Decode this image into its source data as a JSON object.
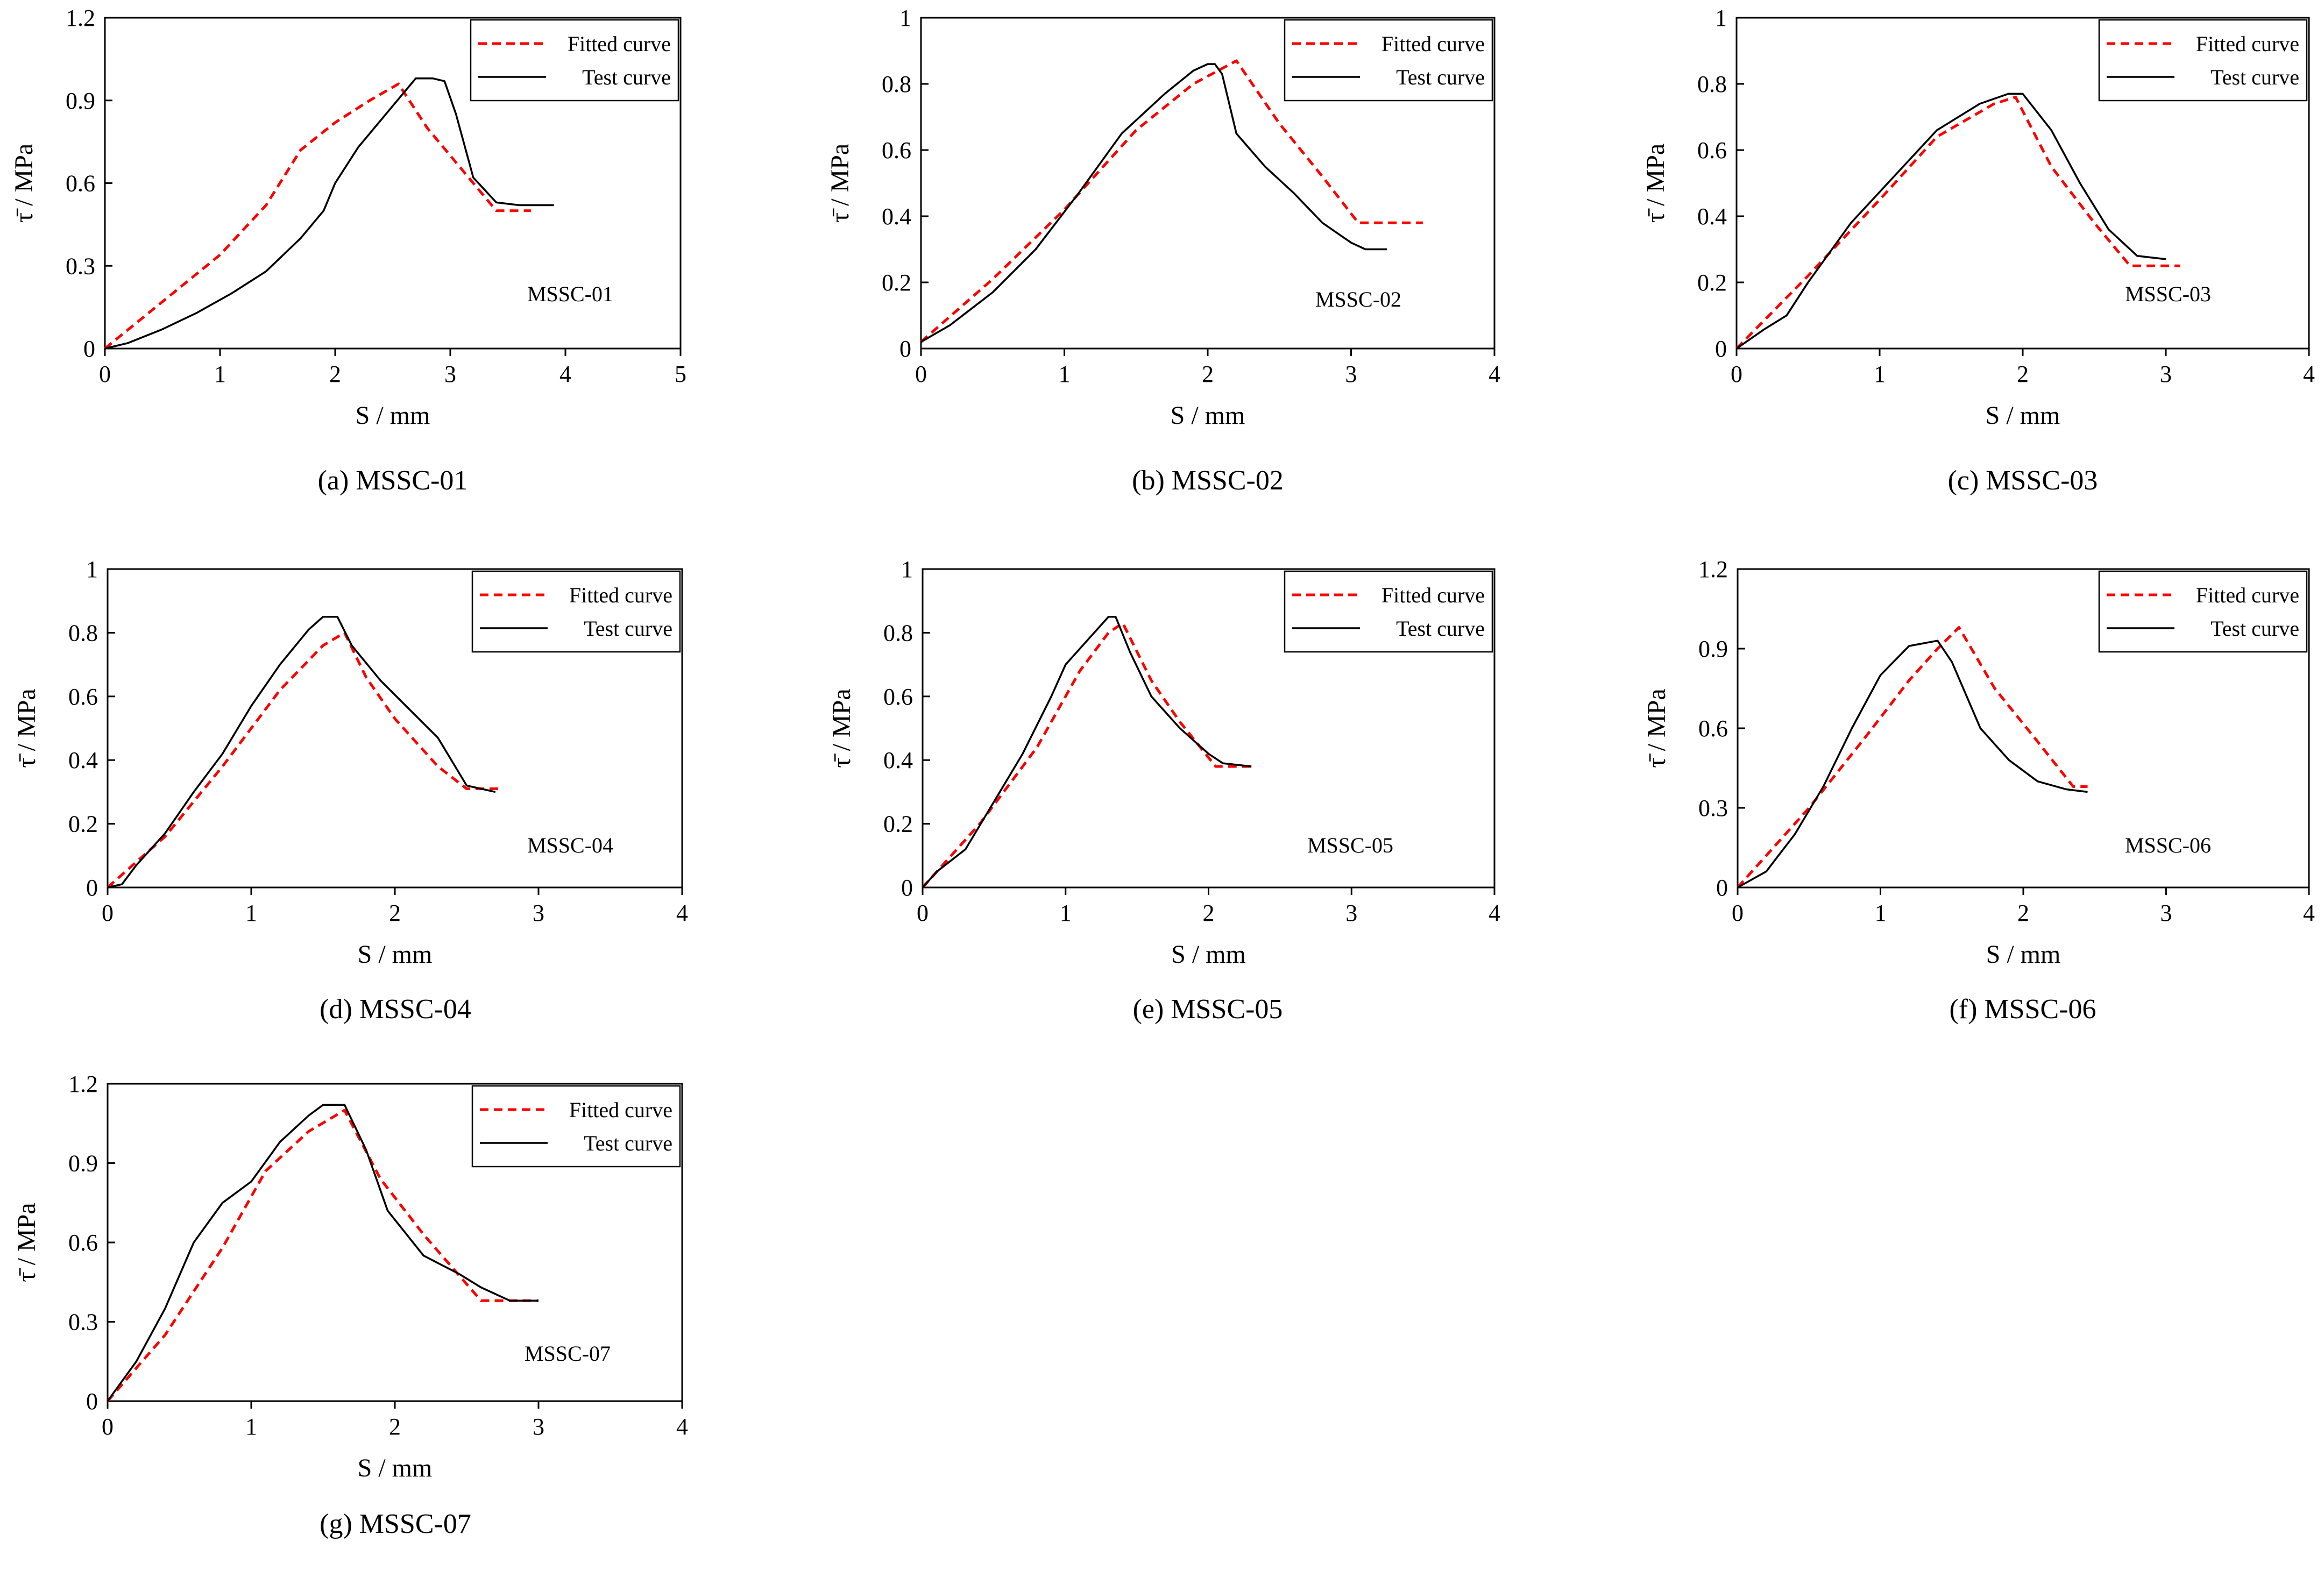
{
  "figure": {
    "legend": {
      "fitted": "Fitted curve",
      "test": "Test curve"
    },
    "colors": {
      "fitted": "#ff0000",
      "test": "#000000",
      "frame": "#000000"
    }
  },
  "chart_data": [
    {
      "type": "line",
      "id": "a",
      "caption": "(a) MSSC-01",
      "label": "MSSC-01",
      "xlabel": "S / mm",
      "ylabel": "τ̄ / MPa",
      "xlim": [
        0,
        5
      ],
      "ylim": [
        0,
        1.2
      ],
      "xticks": [
        "0",
        "1",
        "2",
        "3",
        "4",
        "5"
      ],
      "yticks": [
        "0",
        "0.3",
        "0.6",
        "0.9",
        "1.2"
      ],
      "series": [
        {
          "name": "Fitted curve",
          "style": "dashed",
          "x": [
            0,
            0.5,
            1.0,
            1.4,
            1.7,
            2.0,
            2.3,
            2.55,
            2.8,
            3.1,
            3.4,
            3.7
          ],
          "y": [
            0,
            0.17,
            0.34,
            0.52,
            0.72,
            0.82,
            0.9,
            0.96,
            0.8,
            0.65,
            0.5,
            0.5
          ]
        },
        {
          "name": "Test curve",
          "style": "solid",
          "x": [
            0,
            0.2,
            0.5,
            0.8,
            1.1,
            1.4,
            1.7,
            1.9,
            2.0,
            2.2,
            2.4,
            2.6,
            2.7,
            2.85,
            2.95,
            3.05,
            3.2,
            3.4,
            3.6,
            3.9
          ],
          "y": [
            0,
            0.02,
            0.07,
            0.13,
            0.2,
            0.28,
            0.4,
            0.5,
            0.6,
            0.73,
            0.83,
            0.93,
            0.98,
            0.98,
            0.97,
            0.85,
            0.62,
            0.53,
            0.52,
            0.52
          ]
        }
      ]
    },
    {
      "type": "line",
      "id": "b",
      "caption": "(b) MSSC-02",
      "label": "MSSC-02",
      "xlabel": "S / mm",
      "ylabel": "τ̄ / MPa",
      "xlim": [
        0,
        4
      ],
      "ylim": [
        0,
        1
      ],
      "xticks": [
        "0",
        "1",
        "2",
        "3",
        "4"
      ],
      "yticks": [
        "0",
        "0.2",
        "0.4",
        "0.6",
        "0.8",
        "1"
      ],
      "series": [
        {
          "name": "Fitted curve",
          "style": "dashed",
          "x": [
            0,
            0.5,
            1.0,
            1.5,
            1.9,
            2.2,
            2.5,
            2.8,
            3.05,
            3.5
          ],
          "y": [
            0.02,
            0.21,
            0.42,
            0.66,
            0.8,
            0.87,
            0.68,
            0.52,
            0.38,
            0.38
          ]
        },
        {
          "name": "Test curve",
          "style": "solid",
          "x": [
            0,
            0.2,
            0.5,
            0.8,
            1.1,
            1.4,
            1.7,
            1.9,
            2.0,
            2.05,
            2.1,
            2.2,
            2.4,
            2.6,
            2.8,
            3.0,
            3.1,
            3.25
          ],
          "y": [
            0.02,
            0.07,
            0.17,
            0.3,
            0.47,
            0.65,
            0.77,
            0.84,
            0.86,
            0.86,
            0.83,
            0.65,
            0.55,
            0.47,
            0.38,
            0.32,
            0.3,
            0.3
          ]
        }
      ]
    },
    {
      "type": "line",
      "id": "c",
      "caption": "(c) MSSC-03",
      "label": "MSSC-03",
      "xlabel": "S / mm",
      "ylabel": "τ̄ / MPa",
      "xlim": [
        0,
        4
      ],
      "ylim": [
        0,
        1
      ],
      "xticks": [
        "0",
        "1",
        "2",
        "3",
        "4"
      ],
      "yticks": [
        "0",
        "0.2",
        "0.4",
        "0.6",
        "0.8",
        "1"
      ],
      "series": [
        {
          "name": "Fitted curve",
          "style": "dashed",
          "x": [
            0,
            0.5,
            1.0,
            1.4,
            1.8,
            1.95,
            2.2,
            2.5,
            2.75,
            3.1
          ],
          "y": [
            0,
            0.22,
            0.45,
            0.64,
            0.74,
            0.76,
            0.55,
            0.38,
            0.25,
            0.25
          ]
        },
        {
          "name": "Test curve",
          "style": "solid",
          "x": [
            0,
            0.2,
            0.35,
            0.5,
            0.8,
            1.1,
            1.4,
            1.7,
            1.9,
            2.0,
            2.2,
            2.4,
            2.6,
            2.8,
            3.0
          ],
          "y": [
            0,
            0.06,
            0.1,
            0.2,
            0.38,
            0.52,
            0.66,
            0.74,
            0.77,
            0.77,
            0.66,
            0.5,
            0.36,
            0.28,
            0.27
          ]
        }
      ]
    },
    {
      "type": "line",
      "id": "d",
      "caption": "(d) MSSC-04",
      "label": "MSSC-04",
      "xlabel": "S / mm",
      "ylabel": "τ̄ / MPa",
      "xlim": [
        0,
        4
      ],
      "ylim": [
        0,
        1
      ],
      "xticks": [
        "0",
        "1",
        "2",
        "3",
        "4"
      ],
      "yticks": [
        "0",
        "0.2",
        "0.4",
        "0.6",
        "0.8",
        "1"
      ],
      "series": [
        {
          "name": "Fitted curve",
          "style": "dashed",
          "x": [
            0,
            0.4,
            0.8,
            1.2,
            1.5,
            1.65,
            1.8,
            2.0,
            2.3,
            2.5,
            2.75
          ],
          "y": [
            0,
            0.16,
            0.38,
            0.62,
            0.76,
            0.8,
            0.66,
            0.53,
            0.38,
            0.31,
            0.31
          ]
        },
        {
          "name": "Test curve",
          "style": "solid",
          "x": [
            0,
            0.1,
            0.2,
            0.4,
            0.6,
            0.8,
            1.0,
            1.2,
            1.4,
            1.5,
            1.6,
            1.7,
            1.9,
            2.1,
            2.3,
            2.5,
            2.7
          ],
          "y": [
            0,
            0.01,
            0.07,
            0.17,
            0.3,
            0.42,
            0.57,
            0.7,
            0.81,
            0.85,
            0.85,
            0.76,
            0.65,
            0.56,
            0.47,
            0.32,
            0.3
          ]
        }
      ]
    },
    {
      "type": "line",
      "id": "e",
      "caption": "(e) MSSC-05",
      "label": "MSSC-05",
      "xlabel": "S / mm",
      "ylabel": "τ̄ / MPa",
      "xlim": [
        0,
        4
      ],
      "ylim": [
        0,
        1
      ],
      "xticks": [
        "0",
        "1",
        "2",
        "3",
        "4"
      ],
      "yticks": [
        "0",
        "0.2",
        "0.4",
        "0.6",
        "0.8",
        "1"
      ],
      "series": [
        {
          "name": "Fitted curve",
          "style": "dashed",
          "x": [
            0,
            0.4,
            0.8,
            1.1,
            1.3,
            1.4,
            1.6,
            1.8,
            2.05,
            2.3
          ],
          "y": [
            0,
            0.2,
            0.44,
            0.68,
            0.8,
            0.83,
            0.65,
            0.52,
            0.38,
            0.38
          ]
        },
        {
          "name": "Test curve",
          "style": "solid",
          "x": [
            0,
            0.1,
            0.3,
            0.5,
            0.7,
            0.9,
            1.0,
            1.2,
            1.3,
            1.35,
            1.45,
            1.6,
            1.8,
            2.0,
            2.1,
            2.3
          ],
          "y": [
            0,
            0.05,
            0.12,
            0.27,
            0.42,
            0.6,
            0.7,
            0.8,
            0.85,
            0.85,
            0.74,
            0.6,
            0.5,
            0.42,
            0.39,
            0.38
          ]
        }
      ]
    },
    {
      "type": "line",
      "id": "f",
      "caption": "(f) MSSC-06",
      "label": "MSSC-06",
      "xlabel": "S / mm",
      "ylabel": "τ̄ / MPa",
      "xlim": [
        0,
        4
      ],
      "ylim": [
        0,
        1.2
      ],
      "xticks": [
        "0",
        "1",
        "2",
        "3",
        "4"
      ],
      "yticks": [
        "0",
        "0.3",
        "0.6",
        "0.9",
        "1.2"
      ],
      "series": [
        {
          "name": "Fitted curve",
          "style": "dashed",
          "x": [
            0,
            0.5,
            0.9,
            1.2,
            1.4,
            1.55,
            1.8,
            2.1,
            2.35,
            2.45
          ],
          "y": [
            0,
            0.3,
            0.57,
            0.78,
            0.9,
            0.98,
            0.75,
            0.55,
            0.38,
            0.38
          ]
        },
        {
          "name": "Test curve",
          "style": "solid",
          "x": [
            0,
            0.2,
            0.4,
            0.6,
            0.8,
            1.0,
            1.2,
            1.3,
            1.4,
            1.5,
            1.7,
            1.9,
            2.1,
            2.3,
            2.45
          ],
          "y": [
            0,
            0.06,
            0.2,
            0.38,
            0.6,
            0.8,
            0.91,
            0.92,
            0.93,
            0.85,
            0.6,
            0.48,
            0.4,
            0.37,
            0.36
          ]
        }
      ]
    },
    {
      "type": "line",
      "id": "g",
      "caption": "(g) MSSC-07",
      "label": "MSSC-07",
      "xlabel": "S / mm",
      "ylabel": "τ̄ / MPa",
      "xlim": [
        0,
        4
      ],
      "ylim": [
        0,
        1.2
      ],
      "xticks": [
        "0",
        "1",
        "2",
        "3",
        "4"
      ],
      "yticks": [
        "0",
        "0.3",
        "0.6",
        "0.9",
        "1.2"
      ],
      "series": [
        {
          "name": "Fitted curve",
          "style": "dashed",
          "x": [
            0,
            0.4,
            0.8,
            1.1,
            1.4,
            1.65,
            1.9,
            2.2,
            2.6,
            3.0
          ],
          "y": [
            0,
            0.25,
            0.58,
            0.87,
            1.02,
            1.1,
            0.84,
            0.63,
            0.38,
            0.38
          ]
        },
        {
          "name": "Test curve",
          "style": "solid",
          "x": [
            0,
            0.2,
            0.4,
            0.6,
            0.8,
            1.0,
            1.2,
            1.4,
            1.5,
            1.65,
            1.8,
            1.95,
            2.2,
            2.45,
            2.6,
            2.8,
            3.0
          ],
          "y": [
            0,
            0.15,
            0.35,
            0.6,
            0.75,
            0.83,
            0.98,
            1.08,
            1.12,
            1.12,
            0.95,
            0.72,
            0.55,
            0.48,
            0.43,
            0.38,
            0.38
          ]
        }
      ]
    }
  ]
}
